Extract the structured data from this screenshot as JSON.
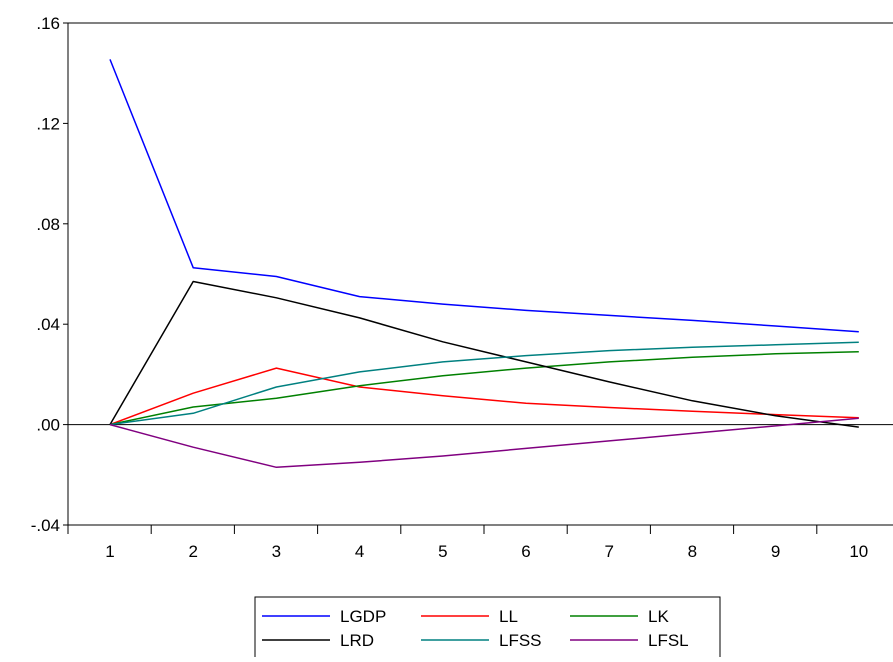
{
  "chart_data": {
    "type": "line",
    "x": [
      1,
      2,
      3,
      4,
      5,
      6,
      7,
      8,
      9,
      10
    ],
    "x_tick_labels": [
      "1",
      "2",
      "3",
      "4",
      "5",
      "6",
      "7",
      "8",
      "9",
      "10"
    ],
    "y_tick_labels": [
      ".16",
      ".12",
      ".08",
      ".04",
      ".00",
      "-.04"
    ],
    "y_ticks": [
      0.16,
      0.12,
      0.08,
      0.04,
      0.0,
      -0.04
    ],
    "ylim": [
      -0.04,
      0.16
    ],
    "zero_line": true,
    "grid": false,
    "legend_position": "bottom-center",
    "series": [
      {
        "name": "LGDP",
        "color": "#0000ff",
        "values": [
          0.1455,
          0.0625,
          0.059,
          0.051,
          0.048,
          0.0455,
          0.0435,
          0.0415,
          0.0393,
          0.037
        ]
      },
      {
        "name": "LL",
        "color": "#ff0000",
        "values": [
          0.0,
          0.0125,
          0.0225,
          0.015,
          0.0115,
          0.0085,
          0.0068,
          0.0053,
          0.004,
          0.0027
        ]
      },
      {
        "name": "LK",
        "color": "#008000",
        "values": [
          0.0,
          0.007,
          0.0105,
          0.0155,
          0.0195,
          0.0225,
          0.025,
          0.0268,
          0.0282,
          0.029
        ]
      },
      {
        "name": "LRD",
        "color": "#000000",
        "values": [
          0.0,
          0.057,
          0.0505,
          0.0425,
          0.033,
          0.025,
          0.017,
          0.0095,
          0.0035,
          -0.001
        ]
      },
      {
        "name": "LFSS",
        "color": "#008080",
        "values": [
          0.0,
          0.0045,
          0.015,
          0.021,
          0.025,
          0.0275,
          0.0295,
          0.0308,
          0.0318,
          0.0328
        ]
      },
      {
        "name": "LFSL",
        "color": "#800080",
        "values": [
          0.0,
          -0.009,
          -0.017,
          -0.015,
          -0.0125,
          -0.0095,
          -0.0065,
          -0.0035,
          -0.0005,
          0.0025
        ]
      }
    ]
  }
}
